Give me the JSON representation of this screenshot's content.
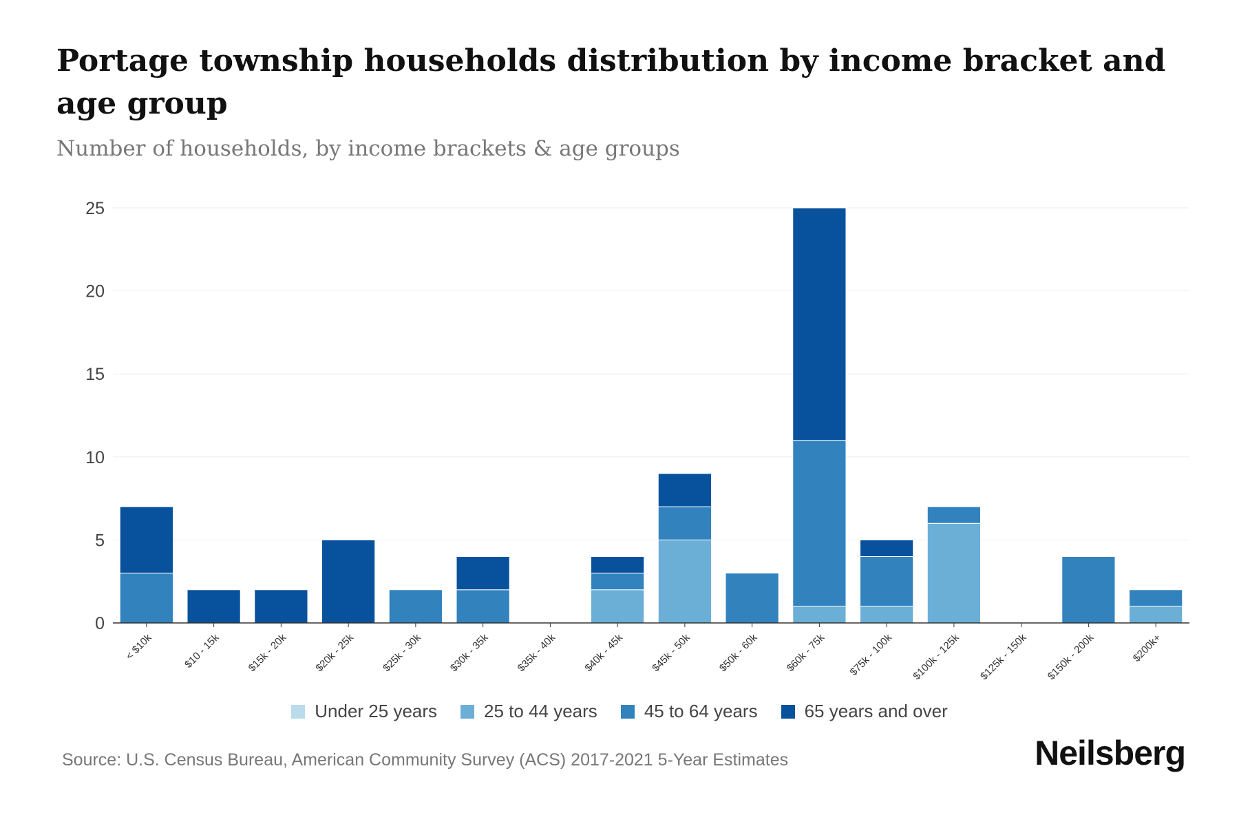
{
  "chart_data": {
    "type": "bar",
    "stacked": true,
    "title": "Portage township households distribution by income bracket and age group",
    "subtitle": "Number of households, by income brackets & age groups",
    "xlabel": "",
    "ylabel": "",
    "ylim": [
      0,
      25
    ],
    "yticks": [
      0,
      5,
      10,
      15,
      20,
      25
    ],
    "grid": true,
    "legend_position": "bottom",
    "categories": [
      "< $10k",
      "$10 - 15k",
      "$15k - 20k",
      "$20k - 25k",
      "$25k - 30k",
      "$30k - 35k",
      "$35k - 40k",
      "$40k - 45k",
      "$45k - 50k",
      "$50k - 60k",
      "$60k - 75k",
      "$75k - 100k",
      "$100k - 125k",
      "$125k - 150k",
      "$150k - 200k",
      "$200k+"
    ],
    "series": [
      {
        "name": "Under 25 years",
        "color": "#b9dbec",
        "values": [
          0,
          0,
          0,
          0,
          0,
          0,
          0,
          0,
          0,
          0,
          0,
          0,
          0,
          0,
          0,
          0
        ]
      },
      {
        "name": "25 to 44 years",
        "color": "#6baed6",
        "values": [
          0,
          0,
          0,
          0,
          0,
          0,
          0,
          2,
          5,
          0,
          1,
          1,
          6,
          0,
          0,
          1
        ]
      },
      {
        "name": "45 to 64 years",
        "color": "#3182bd",
        "values": [
          3,
          0,
          0,
          0,
          2,
          2,
          0,
          1,
          2,
          3,
          10,
          3,
          1,
          0,
          4,
          1
        ]
      },
      {
        "name": "65 years and over",
        "color": "#08519c",
        "values": [
          4,
          2,
          2,
          5,
          0,
          2,
          0,
          1,
          2,
          0,
          14,
          1,
          0,
          0,
          0,
          0
        ]
      }
    ]
  },
  "source": "Source: U.S. Census Bureau, American Community Survey (ACS) 2017-2021 5-Year Estimates",
  "brand": "Neilsberg"
}
